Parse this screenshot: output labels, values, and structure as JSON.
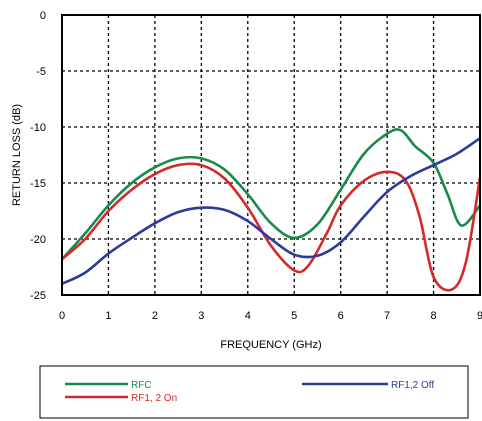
{
  "chart_data": {
    "type": "line",
    "xlabel": "FREQUENCY (GHz)",
    "ylabel": "RETURN LOSS  (dB)",
    "xlim": [
      0,
      9
    ],
    "ylim": [
      -25,
      0
    ],
    "x_ticks": [
      "0",
      "1",
      "2",
      "3",
      "4",
      "5",
      "6",
      "7",
      "8",
      "9"
    ],
    "y_ticks": [
      "0",
      "-5",
      "-10",
      "-15",
      "-20",
      "-25"
    ],
    "grid": true,
    "legend_position": "bottom",
    "series": [
      {
        "name": "RFC",
        "color": "#1a8a4a",
        "x": [
          0,
          0.5,
          1,
          1.5,
          2,
          2.5,
          3,
          3.5,
          4,
          4.5,
          5,
          5.5,
          6,
          6.5,
          7,
          7.3,
          7.6,
          8,
          8.3,
          8.6,
          9
        ],
        "y": [
          -21.8,
          -19.5,
          -17,
          -15,
          -13.6,
          -12.8,
          -12.8,
          -13.8,
          -16,
          -18.6,
          -19.9,
          -18.7,
          -15.6,
          -12.4,
          -10.6,
          -10.3,
          -11.7,
          -13.2,
          -16,
          -18.8,
          -17
        ]
      },
      {
        "name": "RF1, 2 On",
        "color": "#d42a2a",
        "x": [
          0,
          0.5,
          1,
          1.5,
          2,
          2.5,
          3,
          3.5,
          4,
          4.5,
          5,
          5.3,
          5.7,
          6,
          6.5,
          7,
          7.4,
          7.7,
          8,
          8.4,
          8.7,
          9
        ],
        "y": [
          -21.8,
          -20,
          -17.5,
          -15.6,
          -14.2,
          -13.4,
          -13.4,
          -14.6,
          -17.2,
          -20.6,
          -22.8,
          -22.4,
          -19.5,
          -17,
          -14.8,
          -14,
          -14.8,
          -18,
          -23.4,
          -24.5,
          -22,
          -14.5
        ]
      },
      {
        "name": "RF1,2 Off",
        "color": "#2b3c98",
        "x": [
          0,
          0.5,
          1,
          1.5,
          2,
          2.5,
          3,
          3.5,
          4,
          4.5,
          5,
          5.5,
          6,
          6.5,
          7,
          7.5,
          8,
          8.5,
          9
        ],
        "y": [
          -24,
          -23,
          -21.3,
          -19.9,
          -18.6,
          -17.6,
          -17.2,
          -17.4,
          -18.4,
          -20,
          -21.4,
          -21.5,
          -20.3,
          -18,
          -15.8,
          -14.4,
          -13.4,
          -12.4,
          -11
        ]
      }
    ]
  }
}
